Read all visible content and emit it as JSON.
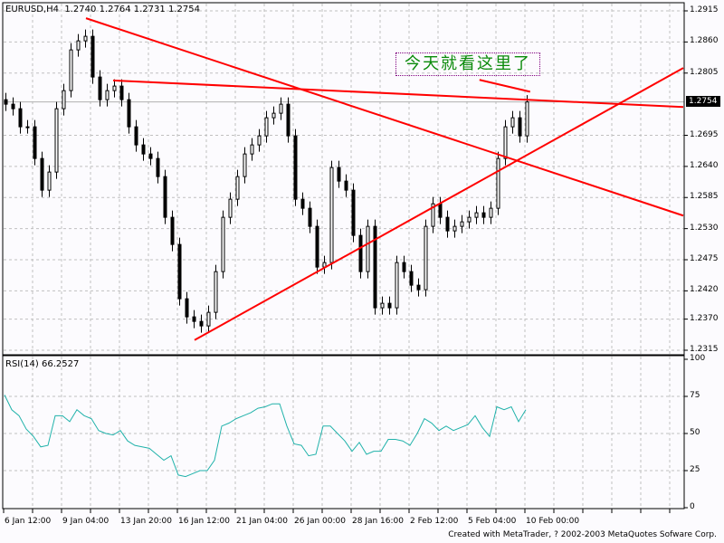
{
  "header": {
    "symbol": "EURUSD,H4",
    "open": "1.2740",
    "high": "1.2764",
    "low": "1.2731",
    "close": "1.2754"
  },
  "annotation": "今天就看这里了",
  "current_price_label": "1.2754",
  "credit": "Created with MetaTrader, ? 2002-2003 MetaQuotes Sofware Corp.",
  "colors": {
    "background": "#fcfbfe",
    "trendline": "#ff0000",
    "rsi_line": "#20b2aa",
    "annotation_text": "#0a8a0a",
    "grid": "#c0c0c0"
  },
  "chart_data": [
    {
      "type": "candlestick",
      "title": "EURUSD,H4",
      "ylim": [
        1.2315,
        1.2915
      ],
      "y_ticks": [
        "1.2915",
        "1.2860",
        "1.2805",
        "1.2695",
        "1.2640",
        "1.2585",
        "1.2530",
        "1.2475",
        "1.2420",
        "1.2370",
        "1.2315"
      ],
      "x_ticks": [
        "6 Jan 12:00",
        "9 Jan 04:00",
        "13 Jan 20:00",
        "16 Jan 12:00",
        "21 Jan 04:00",
        "26 Jan 00:00",
        "28 Jan 16:00",
        "2 Feb 12:00",
        "5 Feb 04:00",
        "10 Feb 00:00"
      ],
      "grid": true,
      "close": [
        1.275,
        1.2742,
        1.271,
        1.271,
        1.2654,
        1.2598,
        1.263,
        1.2742,
        1.2774,
        1.2846,
        1.2862,
        1.287,
        1.2798,
        1.2758,
        1.2774,
        1.2782,
        1.2758,
        1.271,
        1.2678,
        1.2662,
        1.2654,
        1.2622,
        1.255,
        1.2502,
        1.2406,
        1.2374,
        1.2366,
        1.2358,
        1.2382,
        1.2454,
        1.255,
        1.2582,
        1.2622,
        1.2662,
        1.2678,
        1.2694,
        1.2726,
        1.2734,
        1.275,
        1.2694,
        1.2582,
        1.2566,
        1.2534,
        1.2462,
        1.247,
        1.2638,
        1.2614,
        1.2598,
        1.2518,
        1.2454,
        1.2534,
        1.239,
        1.2398,
        1.239,
        1.247,
        1.2454,
        1.243,
        1.2422,
        1.2534,
        1.2574,
        1.255,
        1.2526,
        1.2534,
        1.2542,
        1.255,
        1.2558,
        1.255,
        1.2566,
        1.2654,
        1.271,
        1.2726,
        1.2694,
        1.2754
      ],
      "trendlines": [
        {
          "from": {
            "bar": 11.25,
            "price": 1.2902
          },
          "to": {
            "bar": 93.75,
            "price": 1.2553
          }
        },
        {
          "from": {
            "bar": 15,
            "price": 1.2792
          },
          "to": {
            "bar": 93.75,
            "price": 1.2745
          }
        },
        {
          "from": {
            "bar": 26.25,
            "price": 1.2333
          },
          "to": {
            "bar": 93.75,
            "price": 1.2814
          }
        },
        {
          "from": {
            "bar": 65.6,
            "price": 1.2793
          },
          "to": {
            "bar": 72.6,
            "price": 1.2772
          }
        }
      ]
    },
    {
      "type": "line",
      "title": "RSI(14)",
      "last_value": "66.2527",
      "ylim": [
        0,
        100
      ],
      "y_ticks": [
        "100",
        "75",
        "50",
        "25",
        "0"
      ],
      "grid": true,
      "values": [
        76,
        66,
        62,
        53,
        48,
        41,
        42,
        62,
        62,
        58,
        66,
        62,
        60,
        52,
        50,
        49,
        52,
        45,
        42,
        41,
        40,
        36,
        32,
        35,
        22,
        21,
        23,
        25,
        25,
        32,
        55,
        57,
        60,
        62,
        64,
        67,
        68,
        70,
        70,
        55,
        43,
        42,
        35,
        36,
        55,
        55,
        50,
        45,
        38,
        44,
        36,
        38,
        38,
        46,
        46,
        45,
        42,
        50,
        60,
        57,
        52,
        55,
        52,
        54,
        56,
        62,
        54,
        48,
        68,
        66,
        68,
        58,
        66
      ]
    }
  ]
}
